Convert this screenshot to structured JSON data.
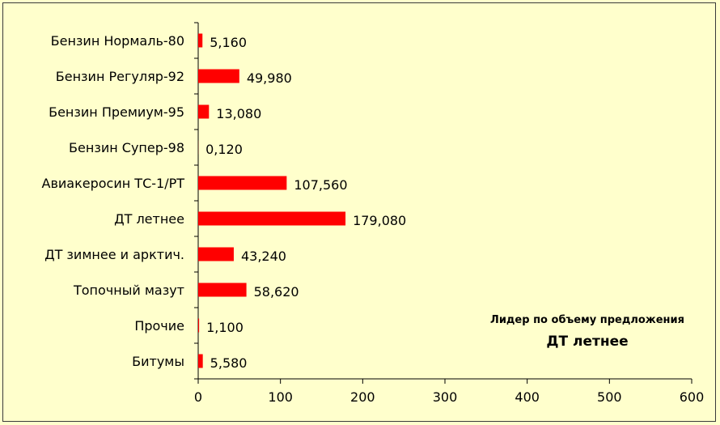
{
  "chart_data": {
    "type": "bar",
    "orientation": "horizontal",
    "categories": [
      "Бензин Нормаль-80",
      "Бензин Регуляр-92",
      "Бензин Премиум-95",
      "Бензин Супер-98",
      "Авиакеросин ТС-1/РТ",
      "ДТ летнее",
      "ДТ зимнее и арктич.",
      "Топочный мазут",
      "Прочие",
      "Битумы"
    ],
    "values": [
      5.16,
      49.98,
      13.08,
      0.12,
      107.56,
      179.08,
      43.24,
      58.62,
      1.1,
      5.58
    ],
    "value_labels": [
      "5,160",
      "49,980",
      "13,080",
      "0,120",
      "107,560",
      "179,080",
      "43,240",
      "58,620",
      "1,100",
      "5,580"
    ],
    "xlim": [
      0,
      600
    ],
    "x_ticks": [
      "0",
      "100",
      "200",
      "300",
      "400",
      "500",
      "600"
    ],
    "grid": false,
    "colors": {
      "bar": "#ff0000",
      "background": "#ffffcc",
      "axis": "#000000"
    },
    "annotation": {
      "line1": "Лидер по объему предложения",
      "line2": "ДТ летнее"
    }
  }
}
